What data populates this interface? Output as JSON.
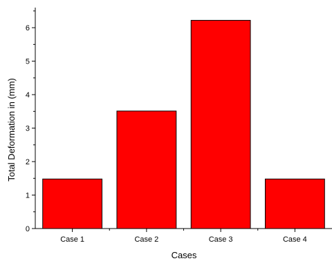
{
  "chart_data": {
    "type": "bar",
    "title": "",
    "xlabel": "Cases",
    "ylabel": "Total Deformation in (mm)",
    "categories": [
      "Case 1",
      "Case 2",
      "Case 3",
      "Case 4"
    ],
    "values": [
      1.48,
      3.51,
      6.22,
      1.48
    ],
    "ylim": [
      0,
      6.6
    ],
    "yticks": [
      "0",
      "1",
      "2",
      "3",
      "4",
      "5",
      "6"
    ],
    "bar_color": "#ff0000",
    "bar_edge_color": "#000000",
    "grid": false,
    "legend": "none"
  }
}
